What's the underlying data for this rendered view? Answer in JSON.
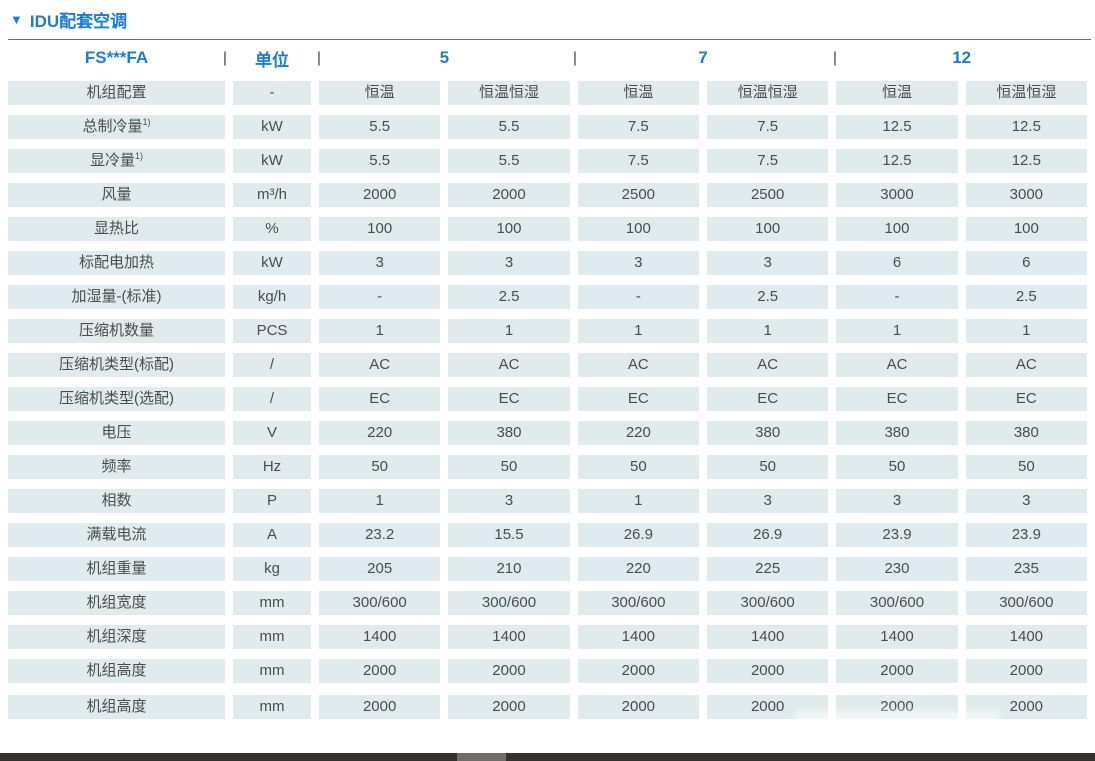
{
  "page": {
    "title_marker": "▼",
    "title_text": "IDU配套空调",
    "accent_color": "#1a7dd4",
    "cell_bg_color": "#dfebec",
    "cell_text_color": "#4c4c4c"
  },
  "header": {
    "model": "FS***FA",
    "unit_label": "单位",
    "separator": "|",
    "groups": [
      "5",
      "7",
      "12"
    ]
  },
  "rows": [
    {
      "label": "机组配置",
      "unit": "-",
      "values": [
        "恒温",
        "恒温恒湿",
        "恒温",
        "恒温恒湿",
        "恒温",
        "恒温恒湿"
      ]
    },
    {
      "label": "总制冷量",
      "sup": "1)",
      "unit": "kW",
      "values": [
        "5.5",
        "5.5",
        "7.5",
        "7.5",
        "12.5",
        "12.5"
      ]
    },
    {
      "label": "显冷量",
      "sup": "1)",
      "unit": "kW",
      "values": [
        "5.5",
        "5.5",
        "7.5",
        "7.5",
        "12.5",
        "12.5"
      ]
    },
    {
      "label": "风量",
      "unit": "m³/h",
      "values": [
        "2000",
        "2000",
        "2500",
        "2500",
        "3000",
        "3000"
      ]
    },
    {
      "label": "显热比",
      "unit": "%",
      "values": [
        "100",
        "100",
        "100",
        "100",
        "100",
        "100"
      ]
    },
    {
      "label": "标配电加热",
      "unit": "kW",
      "values": [
        "3",
        "3",
        "3",
        "3",
        "6",
        "6"
      ]
    },
    {
      "label": "加湿量-(标准)",
      "unit": "kg/h",
      "values": [
        "-",
        "2.5",
        "-",
        "2.5",
        "-",
        "2.5"
      ]
    },
    {
      "label": "压缩机数量",
      "unit": "PCS",
      "values": [
        "1",
        "1",
        "1",
        "1",
        "1",
        "1"
      ]
    },
    {
      "label": "压缩机类型(标配)",
      "unit": "/",
      "values": [
        "AC",
        "AC",
        "AC",
        "AC",
        "AC",
        "AC"
      ]
    },
    {
      "label": "压缩机类型(选配)",
      "unit": "/",
      "values": [
        "EC",
        "EC",
        "EC",
        "EC",
        "EC",
        "EC"
      ]
    },
    {
      "label": "电压",
      "unit": "V",
      "values": [
        "220",
        "380",
        "220",
        "380",
        "380",
        "380"
      ]
    },
    {
      "label": "频率",
      "unit": "Hz",
      "values": [
        "50",
        "50",
        "50",
        "50",
        "50",
        "50"
      ]
    },
    {
      "label": "相数",
      "unit": "P",
      "values": [
        "1",
        "3",
        "1",
        "3",
        "3",
        "3"
      ]
    },
    {
      "label": "满载电流",
      "unit": "A",
      "values": [
        "23.2",
        "15.5",
        "26.9",
        "26.9",
        "23.9",
        "23.9"
      ]
    },
    {
      "label": "机组重量",
      "unit": "kg",
      "values": [
        "205",
        "210",
        "220",
        "225",
        "230",
        "235"
      ]
    },
    {
      "label": "机组宽度",
      "unit": "mm",
      "values": [
        "300/600",
        "300/600",
        "300/600",
        "300/600",
        "300/600",
        "300/600"
      ]
    },
    {
      "label": "机组深度",
      "unit": "mm",
      "values": [
        "1400",
        "1400",
        "1400",
        "1400",
        "1400",
        "1400"
      ]
    },
    {
      "label": "机组高度",
      "unit": "mm",
      "values": [
        "2000",
        "2000",
        "2000",
        "2000",
        "2000",
        "2000"
      ]
    },
    {
      "label": "机组高度",
      "unit": "mm",
      "values": [
        "2000",
        "2000",
        "2000",
        "2000",
        "2000",
        "2000"
      ],
      "extra_gap": true
    }
  ]
}
